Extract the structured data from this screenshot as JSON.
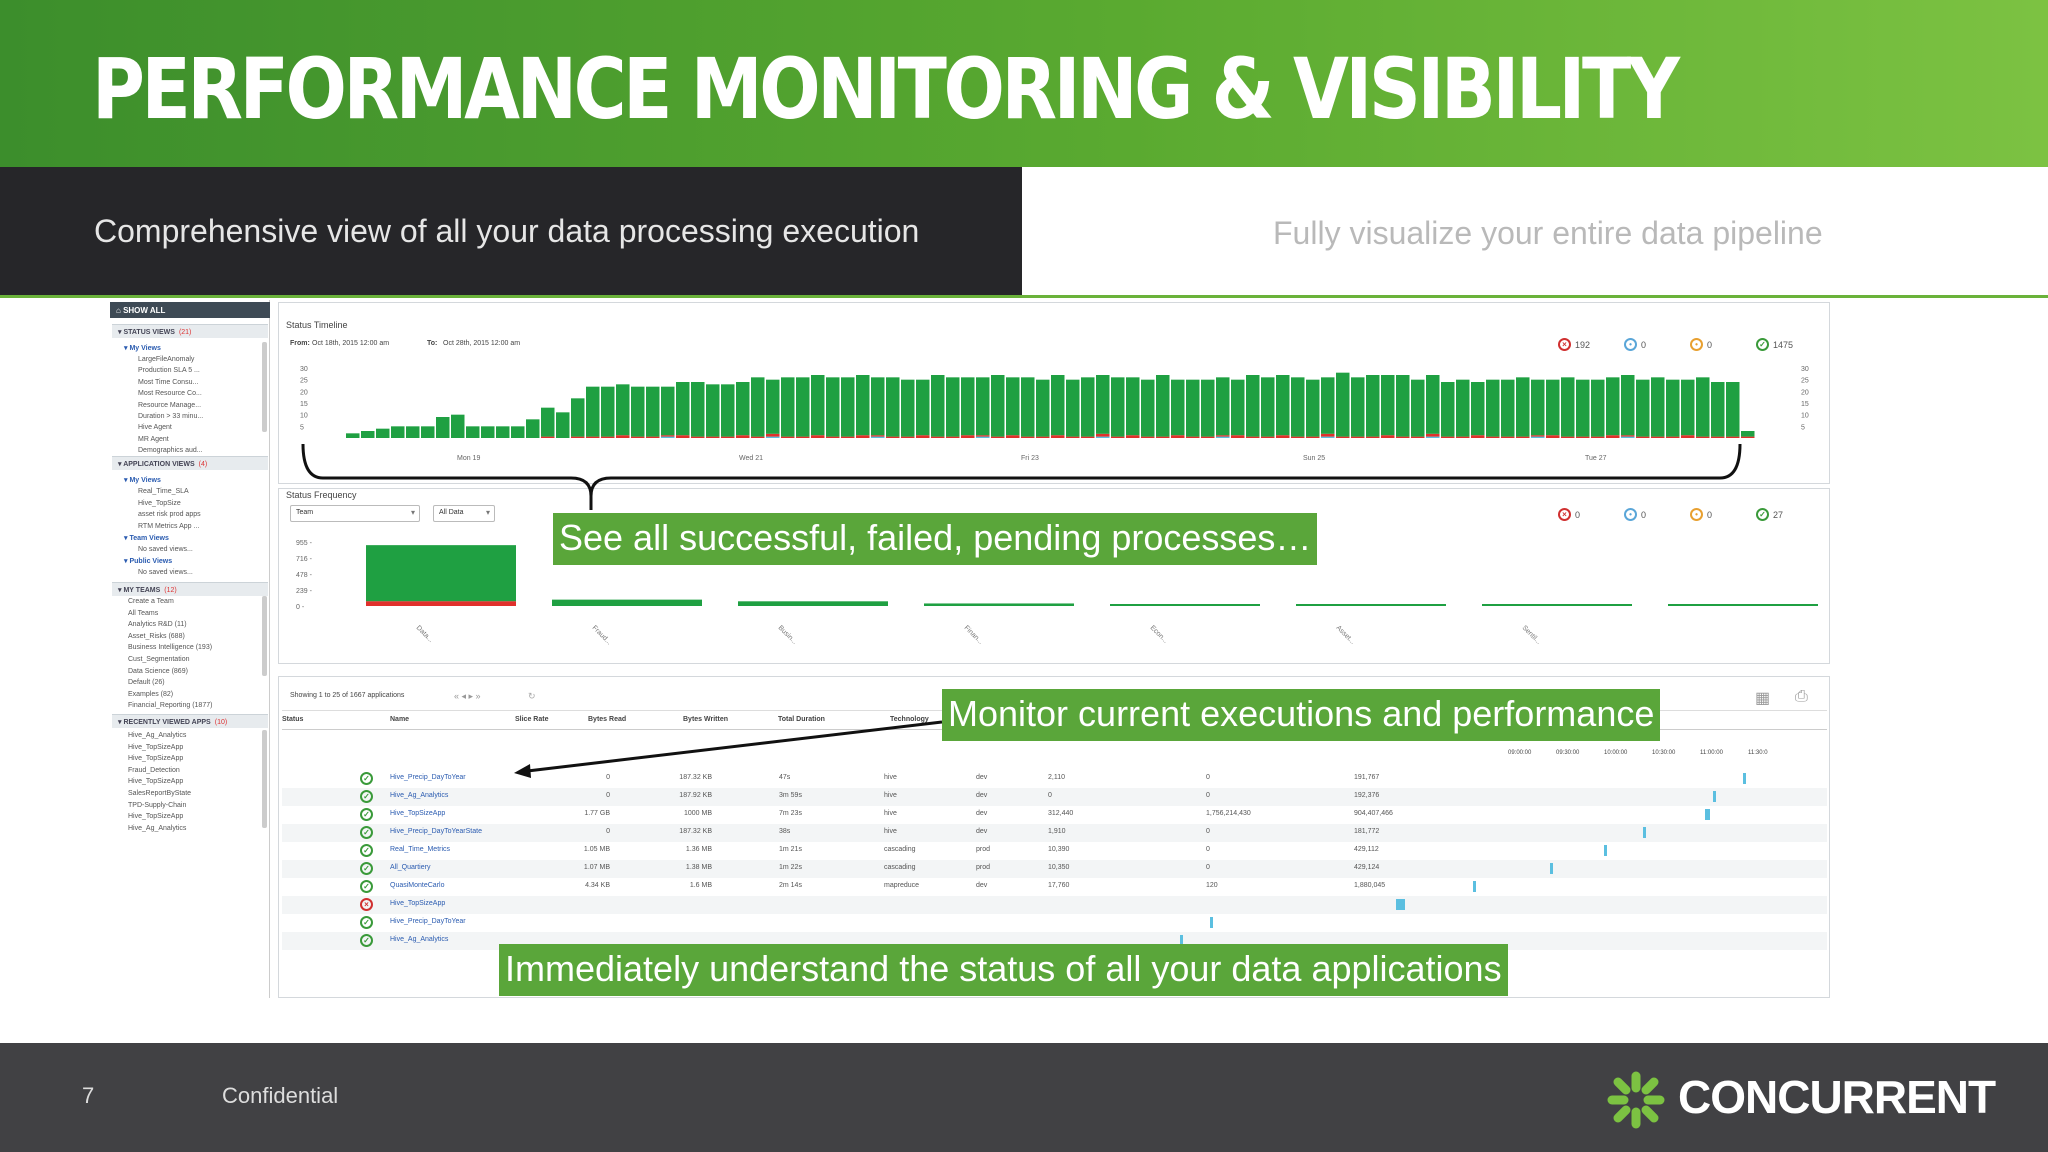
{
  "slide": {
    "title": "PERFORMANCE MONITORING & VISIBILITY",
    "tab_active": "Comprehensive view of all your data processing execution",
    "tab_inactive": "Fully visualize your entire data pipeline",
    "page_number": "7",
    "footer_label": "Confidential",
    "logo_text": "CONCURRENT",
    "colors": {
      "banner_green": "#5aaa30",
      "callout_green": "#5aa63a",
      "dark_tab": "#262629",
      "footer": "#414144"
    }
  },
  "callouts": {
    "processes": "See all successful, failed, pending processes…",
    "executions": "Monitor current executions and performance",
    "status": "Immediately understand the status of all your data applications"
  },
  "sidebar": {
    "show_all": "SHOW ALL",
    "status_views": {
      "label": "STATUS VIEWS",
      "count": "(21)",
      "group": "My Views",
      "items": [
        "LargeFileAnomaly",
        "Production SLA 5 ...",
        "Most Time Consu...",
        "Most Resource Co...",
        "Resource Manage...",
        "Duration > 33 minu...",
        "Hive Agent",
        "MR Agent",
        "Demographics aud..."
      ]
    },
    "application_views": {
      "label": "APPLICATION VIEWS",
      "count": "(4)",
      "my_views": "My Views",
      "items": [
        "Real_Time_SLA",
        "Hive_TopSize",
        "asset risk prod apps",
        "RTM Metrics App ..."
      ],
      "team_views": "Team Views",
      "team_empty": "No saved views...",
      "public_views": "Public Views",
      "public_empty": "No saved views..."
    },
    "my_teams": {
      "label": "MY TEAMS",
      "count": "(12)",
      "items": [
        "Create a Team",
        "All Teams",
        "Analytics R&D (11)",
        "Asset_Risks (688)",
        "Business Intelligence (193)",
        "Cust_Segmentation",
        "Data Science (869)",
        "Default (26)",
        "Examples (82)",
        "Financial_Reporting (1877)"
      ]
    },
    "recent_apps": {
      "label": "RECENTLY VIEWED APPS",
      "count": "(10)",
      "items": [
        "Hive_Ag_Analytics",
        "Hive_TopSizeApp",
        "Hive_TopSizeApp",
        "Fraud_Detection",
        "Hive_TopSizeApp",
        "SalesReportByState",
        "TPD-Supply-Chain",
        "Hive_TopSizeApp",
        "Hive_Ag_Analytics"
      ]
    }
  },
  "timeline": {
    "title": "Status Timeline",
    "from_label": "From:",
    "from_value": "Oct 18th, 2015 12:00 am",
    "to_label": "To:",
    "to_value": "Oct 28th, 2015 12:00 am",
    "counts": {
      "failed": "192",
      "running": "0",
      "pending": "0",
      "success": "1475"
    },
    "y_ticks": [
      "30",
      "25",
      "20",
      "15",
      "10",
      "5"
    ],
    "x_ticks": [
      "Mon 19",
      "Wed 21",
      "Fri 23",
      "Sun 25",
      "Tue 27"
    ],
    "success_values": [
      2,
      3,
      4,
      5,
      5,
      5,
      9,
      10,
      5,
      5,
      5,
      5,
      8,
      13,
      11,
      17,
      22,
      22,
      23,
      22,
      22,
      22,
      24,
      24,
      23,
      23,
      24,
      26,
      25,
      26,
      26,
      27,
      26,
      26,
      27,
      26,
      26,
      25,
      25,
      27,
      26,
      26,
      26,
      27,
      26,
      26,
      25,
      27,
      25,
      26,
      27,
      26,
      26,
      25,
      27,
      25,
      25,
      25,
      26,
      25,
      27,
      26,
      27,
      26,
      25,
      26,
      28,
      26,
      27,
      27,
      27,
      25,
      27,
      24,
      25,
      24,
      25,
      25,
      26,
      25,
      25,
      26,
      25,
      25,
      26,
      27,
      25,
      26,
      25,
      25,
      26,
      24,
      24,
      3
    ],
    "failed_values": [
      0,
      0,
      0,
      0,
      0,
      0,
      0,
      0,
      0,
      0,
      0,
      0,
      0,
      1,
      0,
      1,
      1,
      1,
      2,
      1,
      1,
      1,
      2,
      1,
      1,
      1,
      2,
      1,
      2,
      1,
      1,
      2,
      1,
      1,
      2,
      1,
      1,
      1,
      2,
      1,
      1,
      2,
      1,
      1,
      2,
      1,
      1,
      2,
      1,
      1,
      2,
      1,
      2,
      1,
      1,
      2,
      1,
      1,
      1,
      2,
      1,
      1,
      2,
      1,
      1,
      2,
      1,
      1,
      1,
      2,
      1,
      1,
      2,
      1,
      1,
      2,
      1,
      1,
      1,
      1,
      2,
      1,
      1,
      1,
      2,
      1,
      1,
      1,
      1,
      2,
      1,
      1,
      1,
      1
    ],
    "running_values": [
      0,
      0,
      0,
      0,
      0,
      0,
      0,
      0,
      0,
      0,
      0,
      0,
      0,
      0,
      0,
      0,
      0,
      0,
      0,
      0,
      0,
      1,
      0,
      0,
      0,
      0,
      0,
      0,
      1,
      0,
      0,
      0,
      0,
      0,
      0,
      1,
      0,
      0,
      0,
      0,
      0,
      0,
      1,
      0,
      0,
      0,
      0,
      0,
      0,
      0,
      1,
      0,
      0,
      0,
      0,
      0,
      0,
      0,
      1,
      0,
      0,
      0,
      0,
      0,
      0,
      1,
      0,
      0,
      0,
      0,
      0,
      0,
      1,
      0,
      0,
      0,
      0,
      0,
      0,
      1,
      0,
      0,
      0,
      0,
      0,
      1,
      0,
      0,
      0,
      0,
      0,
      0,
      0,
      0
    ]
  },
  "frequency": {
    "title": "Status Frequency",
    "group_by": "Team",
    "filter": "All Data",
    "counts": {
      "failed": "0",
      "running": "0",
      "pending": "0",
      "success": "27"
    },
    "y_ticks": [
      "955",
      "716",
      "478",
      "239",
      "0"
    ],
    "categories": [
      "Data...",
      "Fraud...",
      "Busin...",
      "Finan...",
      "Econ...",
      "Asset...",
      "Sentil...",
      "Refau..."
    ],
    "success_values": [
      838,
      95,
      70,
      38,
      25,
      12,
      8,
      5
    ],
    "failed_values": [
      70,
      0,
      0,
      0,
      0,
      0,
      0,
      0
    ]
  },
  "applications": {
    "showing": "Showing 1 to 25 of 1667 applications",
    "columns": [
      "Status",
      "Name",
      "Slice Rate",
      "Bytes Read",
      "Bytes Written",
      "Total Duration",
      "Technology"
    ],
    "time_ticks": [
      "09:00:00",
      "09:30:00",
      "10:00:00",
      "10:30:00",
      "11:00:00",
      "11:30:0"
    ],
    "rows": [
      {
        "status": "success",
        "name": "Hive_Precip_DayToYear",
        "slice_rate": "",
        "bytes_read": "0",
        "bytes_written": "187.32 KB",
        "duration": "47s",
        "technology": "hive",
        "env": "dev",
        "c1": "2,110",
        "c2": "0",
        "c3": "191,767",
        "tl_start": 0.955,
        "tl_width": 0.012
      },
      {
        "status": "success",
        "name": "Hive_Ag_Analytics",
        "slice_rate": "",
        "bytes_read": "0",
        "bytes_written": "187.92 KB",
        "duration": "3m 59s",
        "technology": "hive",
        "env": "dev",
        "c1": "0",
        "c2": "0",
        "c3": "192,376",
        "tl_start": 0.935,
        "tl_width": 0.02
      },
      {
        "status": "success",
        "name": "Hive_TopSizeApp",
        "slice_rate": "",
        "bytes_read": "1.77 GB",
        "bytes_written": "1000 MB",
        "duration": "7m 23s",
        "technology": "hive",
        "env": "dev",
        "c1": "312,440",
        "c2": "1,756,214,430",
        "c3": "904,407,466",
        "tl_start": 0.93,
        "tl_width": 0.032
      },
      {
        "status": "success",
        "name": "Hive_Precip_DayToYearState",
        "slice_rate": "",
        "bytes_read": "0",
        "bytes_written": "187.32 KB",
        "duration": "38s",
        "technology": "hive",
        "env": "dev",
        "c1": "1,910",
        "c2": "0",
        "c3": "181,772",
        "tl_start": 0.89,
        "tl_width": 0.01
      },
      {
        "status": "success",
        "name": "Real_Time_Metrics",
        "slice_rate": "",
        "bytes_read": "1.05 MB",
        "bytes_written": "1.36 MB",
        "duration": "1m 21s",
        "technology": "cascading",
        "env": "prod",
        "c1": "10,390",
        "c2": "0",
        "c3": "429,112",
        "tl_start": 0.865,
        "tl_width": 0.012
      },
      {
        "status": "success",
        "name": "All_Quartiery",
        "slice_rate": "",
        "bytes_read": "1.07 MB",
        "bytes_written": "1.38 MB",
        "duration": "1m 22s",
        "technology": "cascading",
        "env": "prod",
        "c1": "10,350",
        "c2": "0",
        "c3": "429,124",
        "tl_start": 0.83,
        "tl_width": 0.012
      },
      {
        "status": "success",
        "name": "QuasiMonteCarlo",
        "slice_rate": "",
        "bytes_read": "4.34 KB",
        "bytes_written": "1.6 MB",
        "duration": "2m 14s",
        "technology": "mapreduce",
        "env": "dev",
        "c1": "17,760",
        "c2": "120",
        "c3": "1,880,045",
        "tl_start": 0.78,
        "tl_width": 0.012
      },
      {
        "status": "failed",
        "name": "Hive_TopSizeApp",
        "slice_rate": "",
        "bytes_read": "",
        "bytes_written": "",
        "duration": "",
        "technology": "",
        "env": "",
        "c1": "",
        "c2": "",
        "c3": "",
        "tl_start": 0.73,
        "tl_width": 0.055
      },
      {
        "status": "success",
        "name": "Hive_Precip_DayToYear",
        "slice_rate": "",
        "bytes_read": "",
        "bytes_written": "",
        "duration": "",
        "technology": "",
        "env": "",
        "c1": "",
        "c2": "",
        "c3": "",
        "tl_start": 0.61,
        "tl_width": 0.008
      },
      {
        "status": "success",
        "name": "Hive_Ag_Analytics",
        "slice_rate": "",
        "bytes_read": "",
        "bytes_written": "",
        "duration": "",
        "technology": "",
        "env": "",
        "c1": "",
        "c2": "",
        "c3": "",
        "tl_start": 0.59,
        "tl_width": 0.012
      }
    ]
  }
}
